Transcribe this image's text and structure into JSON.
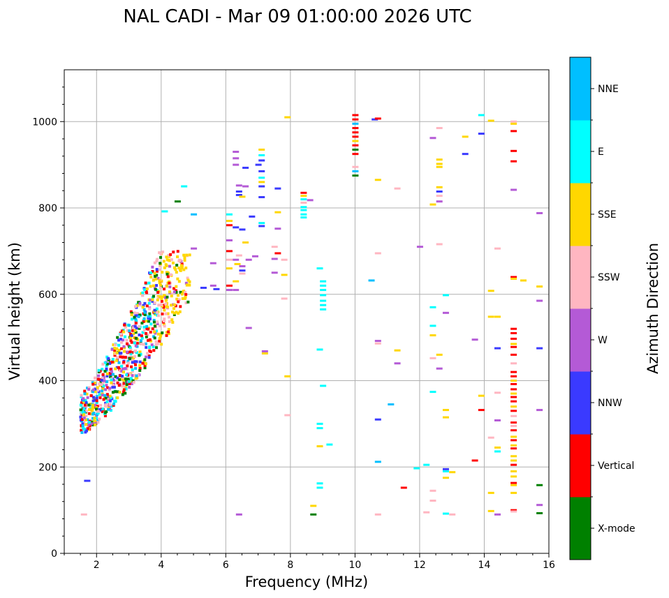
{
  "chart_data": {
    "type": "scatter",
    "title": "NAL CADI - Mar 09 01:00:00 2026 UTC",
    "xlabel": "Frequency (MHz)",
    "ylabel": "Virtual height (km)",
    "xlim": [
      1,
      16
    ],
    "ylim": [
      0,
      1120
    ],
    "xticks": [
      2,
      4,
      6,
      8,
      10,
      12,
      14,
      16
    ],
    "yticks": [
      0,
      200,
      400,
      600,
      800,
      1000
    ],
    "grid": true,
    "colorbar": {
      "label": "Azimuth Direction",
      "categories": [
        {
          "name": "X-mode",
          "color": "#008000"
        },
        {
          "name": "Vertical",
          "color": "#ff0000"
        },
        {
          "name": "NNW",
          "color": "#3a3aff"
        },
        {
          "name": "W",
          "color": "#b45ad6"
        },
        {
          "name": "SSW",
          "color": "#ffb6c1"
        },
        {
          "name": "SSE",
          "color": "#ffd700"
        },
        {
          "name": "E",
          "color": "#00ffff"
        },
        {
          "name": "NNE",
          "color": "#00bfff"
        }
      ]
    },
    "cluster": {
      "description": "dense echo trace (clustered points)",
      "frequency_range": [
        1.5,
        4.9
      ],
      "height_range": [
        275,
        700
      ],
      "approx_points": 900
    },
    "points": [
      {
        "f": 6.3,
        "h": 930,
        "c": "W"
      },
      {
        "f": 6.3,
        "h": 915,
        "c": "W"
      },
      {
        "f": 6.3,
        "h": 900,
        "c": "W"
      },
      {
        "f": 6.6,
        "h": 893,
        "c": "NNW"
      },
      {
        "f": 6.4,
        "h": 852,
        "c": "W"
      },
      {
        "f": 6.4,
        "h": 838,
        "c": "NNW"
      },
      {
        "f": 6.4,
        "h": 830,
        "c": "NNW"
      },
      {
        "f": 6.5,
        "h": 826,
        "c": "SSE"
      },
      {
        "f": 6.6,
        "h": 850,
        "c": "W"
      },
      {
        "f": 6.1,
        "h": 785,
        "c": "E"
      },
      {
        "f": 6.1,
        "h": 770,
        "c": "SSE"
      },
      {
        "f": 6.1,
        "h": 760,
        "c": "Vertical"
      },
      {
        "f": 6.1,
        "h": 725,
        "c": "W"
      },
      {
        "f": 6.1,
        "h": 700,
        "c": "Vertical"
      },
      {
        "f": 6.1,
        "h": 680,
        "c": "SSW"
      },
      {
        "f": 6.1,
        "h": 660,
        "c": "SSE"
      },
      {
        "f": 6.1,
        "h": 620,
        "c": "Vertical"
      },
      {
        "f": 6.1,
        "h": 610,
        "c": "W"
      },
      {
        "f": 6.3,
        "h": 755,
        "c": "NNW"
      },
      {
        "f": 6.5,
        "h": 750,
        "c": "NNW"
      },
      {
        "f": 6.6,
        "h": 720,
        "c": "SSE"
      },
      {
        "f": 6.3,
        "h": 680,
        "c": "W"
      },
      {
        "f": 6.35,
        "h": 670,
        "c": "SSE"
      },
      {
        "f": 6.4,
        "h": 690,
        "c": "SSW"
      },
      {
        "f": 6.5,
        "h": 665,
        "c": "W"
      },
      {
        "f": 6.5,
        "h": 655,
        "c": "NNW"
      },
      {
        "f": 6.7,
        "h": 680,
        "c": "W"
      },
      {
        "f": 6.9,
        "h": 688,
        "c": "W"
      },
      {
        "f": 6.5,
        "h": 648,
        "c": "SSW"
      },
      {
        "f": 6.3,
        "h": 610,
        "c": "W"
      },
      {
        "f": 6.3,
        "h": 630,
        "c": "SSE"
      },
      {
        "f": 6.7,
        "h": 522,
        "c": "W"
      },
      {
        "f": 6.4,
        "h": 90,
        "c": "W"
      },
      {
        "f": 7.1,
        "h": 935,
        "c": "SSE"
      },
      {
        "f": 7.1,
        "h": 922,
        "c": "E"
      },
      {
        "f": 7.1,
        "h": 910,
        "c": "NNW"
      },
      {
        "f": 7.0,
        "h": 900,
        "c": "NNW"
      },
      {
        "f": 7.1,
        "h": 885,
        "c": "NNW"
      },
      {
        "f": 7.1,
        "h": 870,
        "c": "E"
      },
      {
        "f": 7.1,
        "h": 860,
        "c": "SSE"
      },
      {
        "f": 7.1,
        "h": 850,
        "c": "NNW"
      },
      {
        "f": 7.1,
        "h": 825,
        "c": "NNW"
      },
      {
        "f": 6.8,
        "h": 780,
        "c": "NNW"
      },
      {
        "f": 7.1,
        "h": 765,
        "c": "E"
      },
      {
        "f": 7.1,
        "h": 758,
        "c": "NNW"
      },
      {
        "f": 7.6,
        "h": 845,
        "c": "NNW"
      },
      {
        "f": 7.6,
        "h": 790,
        "c": "SSE"
      },
      {
        "f": 7.6,
        "h": 752,
        "c": "W"
      },
      {
        "f": 7.5,
        "h": 710,
        "c": "SSW"
      },
      {
        "f": 7.6,
        "h": 695,
        "c": "Vertical"
      },
      {
        "f": 7.5,
        "h": 682,
        "c": "W"
      },
      {
        "f": 7.8,
        "h": 680,
        "c": "SSW"
      },
      {
        "f": 7.5,
        "h": 650,
        "c": "W"
      },
      {
        "f": 7.8,
        "h": 645,
        "c": "SSE"
      },
      {
        "f": 7.2,
        "h": 468,
        "c": "W"
      },
      {
        "f": 7.2,
        "h": 463,
        "c": "SSE"
      },
      {
        "f": 7.9,
        "h": 1010,
        "c": "SSE"
      },
      {
        "f": 7.8,
        "h": 590,
        "c": "SSW"
      },
      {
        "f": 7.9,
        "h": 410,
        "c": "SSE"
      },
      {
        "f": 7.9,
        "h": 320,
        "c": "SSW"
      },
      {
        "f": 5.0,
        "h": 785,
        "c": "NNE"
      },
      {
        "f": 5.3,
        "h": 615,
        "c": "NNW"
      },
      {
        "f": 5.6,
        "h": 620,
        "c": "W"
      },
      {
        "f": 5.7,
        "h": 612,
        "c": "NNW"
      },
      {
        "f": 5.6,
        "h": 672,
        "c": "W"
      },
      {
        "f": 5.0,
        "h": 706,
        "c": "W"
      },
      {
        "f": 4.1,
        "h": 792,
        "c": "E"
      },
      {
        "f": 4.5,
        "h": 815,
        "c": "X-mode"
      },
      {
        "f": 4.7,
        "h": 850,
        "c": "E"
      },
      {
        "f": 1.7,
        "h": 168,
        "c": "NNW"
      },
      {
        "f": 1.6,
        "h": 90,
        "c": "SSW"
      },
      {
        "f": 8.4,
        "h": 835,
        "c": "Vertical"
      },
      {
        "f": 8.4,
        "h": 828,
        "c": "SSE"
      },
      {
        "f": 8.4,
        "h": 820,
        "c": "E"
      },
      {
        "f": 8.4,
        "h": 812,
        "c": "SSW"
      },
      {
        "f": 8.4,
        "h": 802,
        "c": "E"
      },
      {
        "f": 8.4,
        "h": 795,
        "c": "E"
      },
      {
        "f": 8.4,
        "h": 785,
        "c": "E"
      },
      {
        "f": 8.4,
        "h": 778,
        "c": "E"
      },
      {
        "f": 8.6,
        "h": 818,
        "c": "W"
      },
      {
        "f": 9.0,
        "h": 630,
        "c": "E"
      },
      {
        "f": 9.0,
        "h": 620,
        "c": "E"
      },
      {
        "f": 9.0,
        "h": 610,
        "c": "E"
      },
      {
        "f": 9.0,
        "h": 598,
        "c": "E"
      },
      {
        "f": 9.0,
        "h": 585,
        "c": "E"
      },
      {
        "f": 9.0,
        "h": 575,
        "c": "E"
      },
      {
        "f": 9.0,
        "h": 565,
        "c": "E"
      },
      {
        "f": 8.9,
        "h": 660,
        "c": "E"
      },
      {
        "f": 8.9,
        "h": 472,
        "c": "E"
      },
      {
        "f": 9.0,
        "h": 388,
        "c": "E"
      },
      {
        "f": 8.9,
        "h": 300,
        "c": "E"
      },
      {
        "f": 8.9,
        "h": 290,
        "c": "E"
      },
      {
        "f": 9.2,
        "h": 252,
        "c": "E"
      },
      {
        "f": 8.9,
        "h": 248,
        "c": "SSE"
      },
      {
        "f": 8.9,
        "h": 162,
        "c": "E"
      },
      {
        "f": 8.9,
        "h": 152,
        "c": "E"
      },
      {
        "f": 8.7,
        "h": 110,
        "c": "SSE"
      },
      {
        "f": 8.7,
        "h": 90,
        "c": "X-mode"
      },
      {
        "f": 10.0,
        "h": 1015,
        "c": "Vertical"
      },
      {
        "f": 10.0,
        "h": 1005,
        "c": "Vertical"
      },
      {
        "f": 10.0,
        "h": 995,
        "c": "NNE"
      },
      {
        "f": 10.0,
        "h": 985,
        "c": "Vertical"
      },
      {
        "f": 10.0,
        "h": 975,
        "c": "Vertical"
      },
      {
        "f": 10.0,
        "h": 965,
        "c": "Vertical"
      },
      {
        "f": 10.0,
        "h": 955,
        "c": "SSE"
      },
      {
        "f": 10.0,
        "h": 945,
        "c": "Vertical"
      },
      {
        "f": 10.0,
        "h": 935,
        "c": "X-mode"
      },
      {
        "f": 10.0,
        "h": 925,
        "c": "Vertical"
      },
      {
        "f": 10.0,
        "h": 895,
        "c": "SSW"
      },
      {
        "f": 10.0,
        "h": 885,
        "c": "NNE"
      },
      {
        "f": 10.0,
        "h": 875,
        "c": "X-mode"
      },
      {
        "f": 10.6,
        "h": 1005,
        "c": "NNW"
      },
      {
        "f": 10.7,
        "h": 1007,
        "c": "Vertical"
      },
      {
        "f": 10.7,
        "h": 865,
        "c": "SSE"
      },
      {
        "f": 10.7,
        "h": 695,
        "c": "SSW"
      },
      {
        "f": 10.5,
        "h": 632,
        "c": "NNE"
      },
      {
        "f": 10.7,
        "h": 492,
        "c": "W"
      },
      {
        "f": 10.7,
        "h": 486,
        "c": "SSW"
      },
      {
        "f": 10.7,
        "h": 310,
        "c": "NNW"
      },
      {
        "f": 10.7,
        "h": 212,
        "c": "NNE"
      },
      {
        "f": 10.7,
        "h": 90,
        "c": "SSW"
      },
      {
        "f": 11.3,
        "h": 845,
        "c": "SSW"
      },
      {
        "f": 11.3,
        "h": 470,
        "c": "SSE"
      },
      {
        "f": 11.3,
        "h": 440,
        "c": "W"
      },
      {
        "f": 11.1,
        "h": 345,
        "c": "NNE"
      },
      {
        "f": 11.5,
        "h": 152,
        "c": "Vertical"
      },
      {
        "f": 11.9,
        "h": 197,
        "c": "E"
      },
      {
        "f": 12.0,
        "h": 710,
        "c": "W"
      },
      {
        "f": 12.2,
        "h": 205,
        "c": "E"
      },
      {
        "f": 12.2,
        "h": 95,
        "c": "SSW"
      },
      {
        "f": 12.4,
        "h": 962,
        "c": "W"
      },
      {
        "f": 12.4,
        "h": 808,
        "c": "SSE"
      },
      {
        "f": 12.4,
        "h": 570,
        "c": "E"
      },
      {
        "f": 12.4,
        "h": 527,
        "c": "E"
      },
      {
        "f": 12.4,
        "h": 505,
        "c": "SSE"
      },
      {
        "f": 12.4,
        "h": 452,
        "c": "SSW"
      },
      {
        "f": 12.4,
        "h": 374,
        "c": "E"
      },
      {
        "f": 12.4,
        "h": 145,
        "c": "SSW"
      },
      {
        "f": 12.4,
        "h": 122,
        "c": "SSW"
      },
      {
        "f": 12.6,
        "h": 985,
        "c": "SSW"
      },
      {
        "f": 12.6,
        "h": 912,
        "c": "SSE"
      },
      {
        "f": 12.6,
        "h": 902,
        "c": "SSE"
      },
      {
        "f": 12.6,
        "h": 895,
        "c": "SSE"
      },
      {
        "f": 12.6,
        "h": 848,
        "c": "SSE"
      },
      {
        "f": 12.6,
        "h": 838,
        "c": "NNW"
      },
      {
        "f": 12.6,
        "h": 828,
        "c": "SSW"
      },
      {
        "f": 12.6,
        "h": 815,
        "c": "W"
      },
      {
        "f": 12.6,
        "h": 716,
        "c": "SSW"
      },
      {
        "f": 12.6,
        "h": 460,
        "c": "SSE"
      },
      {
        "f": 12.6,
        "h": 428,
        "c": "W"
      },
      {
        "f": 12.8,
        "h": 598,
        "c": "E"
      },
      {
        "f": 12.8,
        "h": 557,
        "c": "W"
      },
      {
        "f": 12.8,
        "h": 332,
        "c": "SSE"
      },
      {
        "f": 12.8,
        "h": 315,
        "c": "SSE"
      },
      {
        "f": 12.8,
        "h": 195,
        "c": "NNW"
      },
      {
        "f": 12.8,
        "h": 190,
        "c": "E"
      },
      {
        "f": 12.8,
        "h": 175,
        "c": "SSE"
      },
      {
        "f": 12.8,
        "h": 92,
        "c": "E"
      },
      {
        "f": 13.0,
        "h": 188,
        "c": "SSE"
      },
      {
        "f": 13.0,
        "h": 90,
        "c": "SSW"
      },
      {
        "f": 13.4,
        "h": 965,
        "c": "SSE"
      },
      {
        "f": 13.4,
        "h": 925,
        "c": "NNW"
      },
      {
        "f": 13.7,
        "h": 495,
        "c": "W"
      },
      {
        "f": 13.7,
        "h": 215,
        "c": "Vertical"
      },
      {
        "f": 13.9,
        "h": 1015,
        "c": "E"
      },
      {
        "f": 13.9,
        "h": 972,
        "c": "NNW"
      },
      {
        "f": 13.9,
        "h": 365,
        "c": "SSE"
      },
      {
        "f": 13.9,
        "h": 332,
        "c": "Vertical"
      },
      {
        "f": 14.2,
        "h": 1002,
        "c": "SSE"
      },
      {
        "f": 14.2,
        "h": 608,
        "c": "SSE"
      },
      {
        "f": 14.2,
        "h": 548,
        "c": "SSE"
      },
      {
        "f": 14.4,
        "h": 548,
        "c": "SSE"
      },
      {
        "f": 14.2,
        "h": 268,
        "c": "SSW"
      },
      {
        "f": 14.2,
        "h": 140,
        "c": "SSE"
      },
      {
        "f": 14.2,
        "h": 98,
        "c": "SSE"
      },
      {
        "f": 14.4,
        "h": 706,
        "c": "SSW"
      },
      {
        "f": 14.4,
        "h": 475,
        "c": "NNW"
      },
      {
        "f": 14.4,
        "h": 372,
        "c": "SSW"
      },
      {
        "f": 14.4,
        "h": 308,
        "c": "W"
      },
      {
        "f": 14.4,
        "h": 245,
        "c": "SSE"
      },
      {
        "f": 14.4,
        "h": 236,
        "c": "E"
      },
      {
        "f": 14.4,
        "h": 90,
        "c": "W"
      },
      {
        "f": 14.9,
        "h": 1000,
        "c": "SSW"
      },
      {
        "f": 14.9,
        "h": 995,
        "c": "SSE"
      },
      {
        "f": 14.9,
        "h": 978,
        "c": "Vertical"
      },
      {
        "f": 14.9,
        "h": 932,
        "c": "Vertical"
      },
      {
        "f": 14.9,
        "h": 908,
        "c": "Vertical"
      },
      {
        "f": 14.9,
        "h": 842,
        "c": "W"
      },
      {
        "f": 14.9,
        "h": 640,
        "c": "Vertical"
      },
      {
        "f": 14.9,
        "h": 636,
        "c": "SSE"
      },
      {
        "f": 15.2,
        "h": 632,
        "c": "SSE"
      },
      {
        "f": 14.9,
        "h": 520,
        "c": "Vertical"
      },
      {
        "f": 14.9,
        "h": 510,
        "c": "Vertical"
      },
      {
        "f": 14.9,
        "h": 497,
        "c": "Vertical"
      },
      {
        "f": 14.9,
        "h": 485,
        "c": "SSE"
      },
      {
        "f": 14.9,
        "h": 478,
        "c": "Vertical"
      },
      {
        "f": 14.9,
        "h": 460,
        "c": "Vertical"
      },
      {
        "f": 14.9,
        "h": 440,
        "c": "SSW"
      },
      {
        "f": 14.9,
        "h": 420,
        "c": "Vertical"
      },
      {
        "f": 14.9,
        "h": 410,
        "c": "Vertical"
      },
      {
        "f": 14.9,
        "h": 400,
        "c": "SSE"
      },
      {
        "f": 14.9,
        "h": 392,
        "c": "Vertical"
      },
      {
        "f": 14.9,
        "h": 380,
        "c": "Vertical"
      },
      {
        "f": 14.9,
        "h": 370,
        "c": "SSE"
      },
      {
        "f": 14.9,
        "h": 362,
        "c": "Vertical"
      },
      {
        "f": 14.9,
        "h": 352,
        "c": "Vertical"
      },
      {
        "f": 14.9,
        "h": 340,
        "c": "SSE"
      },
      {
        "f": 14.9,
        "h": 330,
        "c": "Vertical"
      },
      {
        "f": 14.9,
        "h": 318,
        "c": "SSW"
      },
      {
        "f": 14.9,
        "h": 303,
        "c": "Vertical"
      },
      {
        "f": 14.9,
        "h": 295,
        "c": "SSW"
      },
      {
        "f": 14.9,
        "h": 285,
        "c": "Vertical"
      },
      {
        "f": 14.9,
        "h": 270,
        "c": "SSE"
      },
      {
        "f": 14.9,
        "h": 262,
        "c": "Vertical"
      },
      {
        "f": 14.9,
        "h": 250,
        "c": "SSE"
      },
      {
        "f": 14.9,
        "h": 243,
        "c": "Vertical"
      },
      {
        "f": 14.9,
        "h": 225,
        "c": "SSE"
      },
      {
        "f": 14.9,
        "h": 215,
        "c": "SSE"
      },
      {
        "f": 14.9,
        "h": 205,
        "c": "Vertical"
      },
      {
        "f": 14.9,
        "h": 190,
        "c": "SSE"
      },
      {
        "f": 14.9,
        "h": 178,
        "c": "SSE"
      },
      {
        "f": 14.9,
        "h": 163,
        "c": "Vertical"
      },
      {
        "f": 14.9,
        "h": 158,
        "c": "SSE"
      },
      {
        "f": 14.9,
        "h": 140,
        "c": "SSE"
      },
      {
        "f": 14.9,
        "h": 100,
        "c": "Vertical"
      },
      {
        "f": 14.9,
        "h": 97,
        "c": "SSW"
      },
      {
        "f": 15.7,
        "h": 788,
        "c": "W"
      },
      {
        "f": 15.7,
        "h": 618,
        "c": "SSE"
      },
      {
        "f": 15.7,
        "h": 585,
        "c": "W"
      },
      {
        "f": 15.7,
        "h": 475,
        "c": "NNW"
      },
      {
        "f": 15.7,
        "h": 332,
        "c": "W"
      },
      {
        "f": 15.7,
        "h": 158,
        "c": "X-mode"
      },
      {
        "f": 15.7,
        "h": 112,
        "c": "W"
      },
      {
        "f": 15.7,
        "h": 93,
        "c": "X-mode"
      }
    ]
  }
}
